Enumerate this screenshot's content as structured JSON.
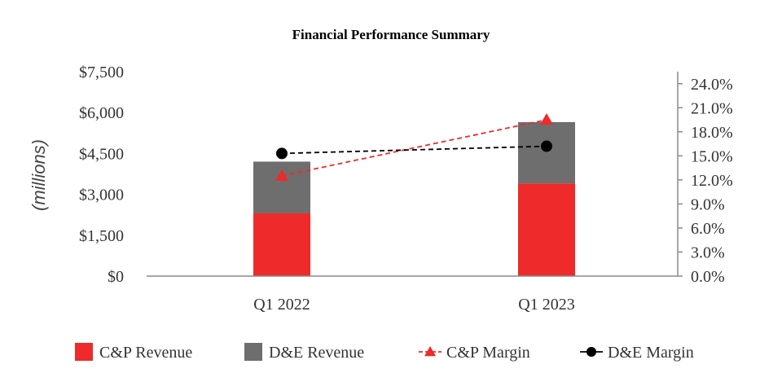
{
  "chart_data": {
    "type": "bar",
    "title": "Financial Performance Summary",
    "ylabel": "(millions)",
    "categories": [
      "Q1 2022",
      "Q1 2023"
    ],
    "stacked_bars": [
      {
        "name": "C&P Revenue",
        "color": "#ee2a2a",
        "values": [
          2300,
          3400
        ]
      },
      {
        "name": "D&E Revenue",
        "color": "#6e6e6e",
        "values": [
          1900,
          2250
        ]
      }
    ],
    "lines": [
      {
        "name": "C&P Margin",
        "color": "#ee2a2a",
        "marker": "triangle",
        "dash": true,
        "values": [
          12.5,
          19.5
        ]
      },
      {
        "name": "D&E Margin",
        "color": "#000000",
        "marker": "circle",
        "dash": true,
        "values": [
          15.3,
          16.2
        ]
      }
    ],
    "ylim": [
      0,
      7500
    ],
    "y_ticks": [
      "$0",
      "$1,500",
      "$3,000",
      "$4,500",
      "$6,000",
      "$7,500"
    ],
    "y_tick_values": [
      0,
      1500,
      3000,
      4500,
      6000,
      7500
    ],
    "y2lim": [
      0,
      25.5
    ],
    "y2_ticks": [
      "0.0%",
      "3.0%",
      "6.0%",
      "9.0%",
      "12.0%",
      "15.0%",
      "18.0%",
      "21.0%",
      "24.0%"
    ],
    "y2_tick_values": [
      0,
      3,
      6,
      9,
      12,
      15,
      18,
      21,
      24
    ],
    "legend": [
      "C&P Revenue",
      "D&E Revenue",
      "C&P Margin",
      "D&E Margin"
    ]
  }
}
